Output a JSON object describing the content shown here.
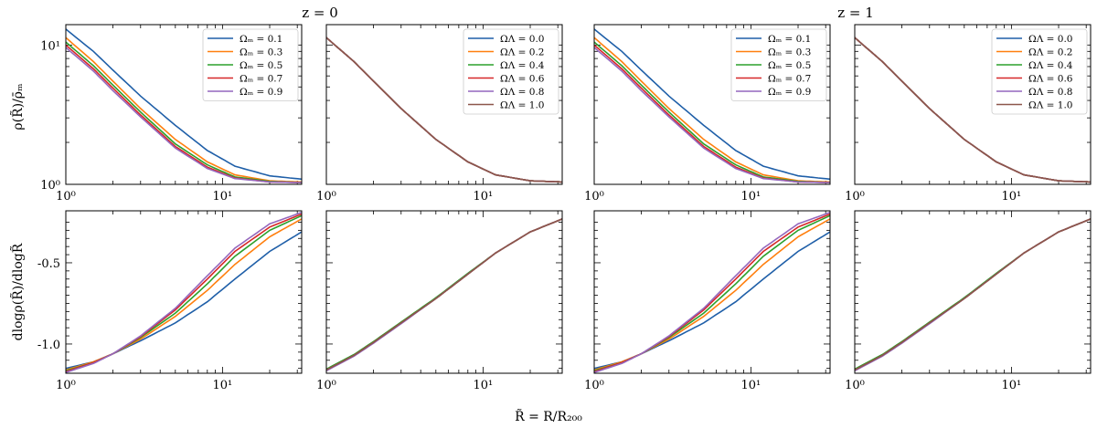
{
  "figure": {
    "group_titles": [
      "z = 0",
      "z = 1"
    ],
    "xlabel": "R̃  = R/R₂₀₀",
    "ylabel_top": "ρ(R̃)/ρ̄ₘ",
    "ylabel_bottom": "dlogρ(R̃)/dlogR̃"
  },
  "chart_data": [
    {
      "type": "line",
      "row": "top",
      "col": 0,
      "x": [
        1,
        1.5,
        2,
        3,
        5,
        8,
        12,
        20,
        32
      ],
      "xscale": "log",
      "yscale": "log",
      "xlim": [
        1,
        32
      ],
      "ylim": [
        1,
        14
      ],
      "xticks": [
        "10⁰",
        "10¹"
      ],
      "yticks": [
        "10⁰",
        "10¹"
      ],
      "legend": "top-right",
      "series": [
        {
          "name": "Ωₘ = 0.1",
          "color": "#1f5fa8",
          "values": [
            13.0,
            9.0,
            6.6,
            4.3,
            2.65,
            1.75,
            1.35,
            1.15,
            1.09
          ]
        },
        {
          "name": "Ωₘ = 0.3",
          "color": "#ff7f0e",
          "values": [
            11.3,
            7.6,
            5.5,
            3.5,
            2.1,
            1.45,
            1.17,
            1.06,
            1.04
          ]
        },
        {
          "name": "Ωₘ = 0.5",
          "color": "#2ca02c",
          "values": [
            10.5,
            7.1,
            5.15,
            3.3,
            1.95,
            1.38,
            1.13,
            1.05,
            1.03
          ]
        },
        {
          "name": "Ωₘ = 0.7",
          "color": "#d62728",
          "values": [
            10.0,
            6.75,
            4.9,
            3.15,
            1.87,
            1.33,
            1.11,
            1.04,
            1.03
          ]
        },
        {
          "name": "Ωₘ = 0.9",
          "color": "#9467bd",
          "values": [
            9.6,
            6.5,
            4.7,
            3.05,
            1.82,
            1.3,
            1.1,
            1.04,
            1.03
          ]
        }
      ]
    },
    {
      "type": "line",
      "row": "top",
      "col": 1,
      "x": [
        1,
        1.5,
        2,
        3,
        5,
        8,
        12,
        20,
        32
      ],
      "xscale": "log",
      "yscale": "log",
      "xlim": [
        1,
        32
      ],
      "ylim": [
        1,
        14
      ],
      "xticks": [
        "10⁰",
        "10¹"
      ],
      "yticks": [],
      "legend": "top-right",
      "series": [
        {
          "name": "ΩΛ = 0.0",
          "color": "#1f5fa8",
          "values": [
            11.3,
            7.6,
            5.5,
            3.5,
            2.1,
            1.45,
            1.17,
            1.06,
            1.04
          ]
        },
        {
          "name": "ΩΛ = 0.2",
          "color": "#ff7f0e",
          "values": [
            11.3,
            7.6,
            5.5,
            3.5,
            2.1,
            1.45,
            1.17,
            1.06,
            1.04
          ]
        },
        {
          "name": "ΩΛ = 0.4",
          "color": "#2ca02c",
          "values": [
            11.3,
            7.6,
            5.5,
            3.5,
            2.1,
            1.45,
            1.17,
            1.06,
            1.04
          ]
        },
        {
          "name": "ΩΛ = 0.6",
          "color": "#d62728",
          "values": [
            11.3,
            7.6,
            5.5,
            3.5,
            2.1,
            1.45,
            1.17,
            1.06,
            1.04
          ]
        },
        {
          "name": "ΩΛ = 0.8",
          "color": "#9467bd",
          "values": [
            11.3,
            7.6,
            5.5,
            3.5,
            2.1,
            1.45,
            1.17,
            1.06,
            1.04
          ]
        },
        {
          "name": "ΩΛ = 1.0",
          "color": "#8c564b",
          "values": [
            11.3,
            7.6,
            5.5,
            3.5,
            2.1,
            1.45,
            1.17,
            1.06,
            1.04
          ]
        }
      ]
    },
    {
      "type": "line",
      "row": "top",
      "col": 2,
      "x": [
        1,
        1.5,
        2,
        3,
        5,
        8,
        12,
        20,
        32
      ],
      "xscale": "log",
      "yscale": "log",
      "xlim": [
        1,
        32
      ],
      "ylim": [
        1,
        14
      ],
      "xticks": [
        "10⁰",
        "10¹"
      ],
      "yticks": [],
      "legend": "top-right",
      "series": [
        {
          "name": "Ωₘ = 0.1",
          "color": "#1f5fa8",
          "values": [
            13.0,
            9.0,
            6.6,
            4.3,
            2.65,
            1.75,
            1.35,
            1.15,
            1.09
          ]
        },
        {
          "name": "Ωₘ = 0.3",
          "color": "#ff7f0e",
          "values": [
            11.3,
            7.6,
            5.5,
            3.5,
            2.1,
            1.45,
            1.17,
            1.06,
            1.04
          ]
        },
        {
          "name": "Ωₘ = 0.5",
          "color": "#2ca02c",
          "values": [
            10.5,
            7.1,
            5.15,
            3.3,
            1.95,
            1.38,
            1.13,
            1.05,
            1.03
          ]
        },
        {
          "name": "Ωₘ = 0.7",
          "color": "#d62728",
          "values": [
            10.0,
            6.75,
            4.9,
            3.15,
            1.87,
            1.33,
            1.11,
            1.04,
            1.03
          ]
        },
        {
          "name": "Ωₘ = 0.9",
          "color": "#9467bd",
          "values": [
            9.6,
            6.5,
            4.7,
            3.05,
            1.82,
            1.3,
            1.1,
            1.04,
            1.03
          ]
        }
      ]
    },
    {
      "type": "line",
      "row": "top",
      "col": 3,
      "x": [
        1,
        1.5,
        2,
        3,
        5,
        8,
        12,
        20,
        32
      ],
      "xscale": "log",
      "yscale": "log",
      "xlim": [
        1,
        32
      ],
      "ylim": [
        1,
        14
      ],
      "xticks": [
        "10⁰",
        "10¹"
      ],
      "yticks": [],
      "legend": "top-right",
      "series": [
        {
          "name": "ΩΛ = 0.0",
          "color": "#1f5fa8",
          "values": [
            11.3,
            7.6,
            5.5,
            3.5,
            2.1,
            1.45,
            1.17,
            1.06,
            1.04
          ]
        },
        {
          "name": "ΩΛ = 0.2",
          "color": "#ff7f0e",
          "values": [
            11.3,
            7.6,
            5.5,
            3.5,
            2.1,
            1.45,
            1.17,
            1.06,
            1.04
          ]
        },
        {
          "name": "ΩΛ = 0.4",
          "color": "#2ca02c",
          "values": [
            11.3,
            7.6,
            5.5,
            3.5,
            2.1,
            1.45,
            1.17,
            1.06,
            1.04
          ]
        },
        {
          "name": "ΩΛ = 0.6",
          "color": "#d62728",
          "values": [
            11.3,
            7.6,
            5.5,
            3.5,
            2.1,
            1.45,
            1.17,
            1.06,
            1.04
          ]
        },
        {
          "name": "ΩΛ = 0.8",
          "color": "#9467bd",
          "values": [
            11.3,
            7.6,
            5.5,
            3.5,
            2.1,
            1.45,
            1.17,
            1.06,
            1.04
          ]
        },
        {
          "name": "ΩΛ = 1.0",
          "color": "#8c564b",
          "values": [
            11.3,
            7.6,
            5.5,
            3.5,
            2.1,
            1.45,
            1.17,
            1.06,
            1.04
          ]
        }
      ]
    },
    {
      "type": "line",
      "row": "bottom",
      "col": 0,
      "x": [
        1,
        1.5,
        2,
        3,
        5,
        8,
        12,
        20,
        32
      ],
      "xscale": "log",
      "yscale": "linear",
      "xlim": [
        1,
        32
      ],
      "ylim": [
        -1.18,
        -0.18
      ],
      "xticks": [
        "10⁰",
        "10¹"
      ],
      "yticks": [
        "-1.0",
        "-0.5"
      ],
      "ytick_values": [
        -1.0,
        -0.5
      ],
      "series": [
        {
          "name": "Ωₘ = 0.1",
          "color": "#1f5fa8",
          "values": [
            -1.15,
            -1.11,
            -1.06,
            -0.98,
            -0.87,
            -0.74,
            -0.6,
            -0.43,
            -0.31
          ]
        },
        {
          "name": "Ωₘ = 0.3",
          "color": "#ff7f0e",
          "values": [
            -1.16,
            -1.11,
            -1.06,
            -0.97,
            -0.83,
            -0.67,
            -0.51,
            -0.34,
            -0.23
          ]
        },
        {
          "name": "Ωₘ = 0.5",
          "color": "#2ca02c",
          "values": [
            -1.165,
            -1.115,
            -1.06,
            -0.96,
            -0.81,
            -0.63,
            -0.46,
            -0.3,
            -0.21
          ]
        },
        {
          "name": "Ωₘ = 0.7",
          "color": "#d62728",
          "values": [
            -1.17,
            -1.115,
            -1.06,
            -0.955,
            -0.79,
            -0.6,
            -0.43,
            -0.28,
            -0.2
          ]
        },
        {
          "name": "Ωₘ = 0.9",
          "color": "#9467bd",
          "values": [
            -1.175,
            -1.12,
            -1.06,
            -0.95,
            -0.78,
            -0.58,
            -0.41,
            -0.26,
            -0.19
          ]
        }
      ]
    },
    {
      "type": "line",
      "row": "bottom",
      "col": 1,
      "x": [
        1,
        1.5,
        2,
        3,
        5,
        8,
        12,
        20,
        32
      ],
      "xscale": "log",
      "yscale": "linear",
      "xlim": [
        1,
        32
      ],
      "ylim": [
        -1.18,
        -0.18
      ],
      "xticks": [
        "10⁰",
        "10¹"
      ],
      "yticks": [],
      "series": [
        {
          "name": "ΩΛ = 0.0",
          "color": "#1f5fa8",
          "values": [
            -1.16,
            -1.07,
            -0.99,
            -0.87,
            -0.72,
            -0.57,
            -0.44,
            -0.31,
            -0.23
          ]
        },
        {
          "name": "ΩΛ = 0.2",
          "color": "#ff7f0e",
          "values": [
            -1.16,
            -1.07,
            -0.99,
            -0.87,
            -0.72,
            -0.57,
            -0.44,
            -0.31,
            -0.23
          ]
        },
        {
          "name": "ΩΛ = 0.4",
          "color": "#2ca02c",
          "values": [
            -1.155,
            -1.065,
            -0.985,
            -0.865,
            -0.715,
            -0.565,
            -0.44,
            -0.31,
            -0.23
          ]
        },
        {
          "name": "ΩΛ = 0.6",
          "color": "#d62728",
          "values": [
            -1.16,
            -1.07,
            -0.99,
            -0.87,
            -0.72,
            -0.57,
            -0.44,
            -0.31,
            -0.23
          ]
        },
        {
          "name": "ΩΛ = 0.8",
          "color": "#9467bd",
          "values": [
            -1.165,
            -1.075,
            -0.995,
            -0.875,
            -0.72,
            -0.57,
            -0.44,
            -0.31,
            -0.23
          ]
        },
        {
          "name": "ΩΛ = 1.0",
          "color": "#8c564b",
          "values": [
            -1.16,
            -1.07,
            -0.99,
            -0.87,
            -0.72,
            -0.57,
            -0.44,
            -0.31,
            -0.23
          ]
        }
      ]
    },
    {
      "type": "line",
      "row": "bottom",
      "col": 2,
      "x": [
        1,
        1.5,
        2,
        3,
        5,
        8,
        12,
        20,
        32
      ],
      "xscale": "log",
      "yscale": "linear",
      "xlim": [
        1,
        32
      ],
      "ylim": [
        -1.18,
        -0.18
      ],
      "xticks": [
        "10⁰",
        "10¹"
      ],
      "yticks": [],
      "series": [
        {
          "name": "Ωₘ = 0.1",
          "color": "#1f5fa8",
          "values": [
            -1.15,
            -1.11,
            -1.06,
            -0.98,
            -0.87,
            -0.74,
            -0.6,
            -0.43,
            -0.31
          ]
        },
        {
          "name": "Ωₘ = 0.3",
          "color": "#ff7f0e",
          "values": [
            -1.16,
            -1.11,
            -1.06,
            -0.97,
            -0.83,
            -0.67,
            -0.51,
            -0.34,
            -0.23
          ]
        },
        {
          "name": "Ωₘ = 0.5",
          "color": "#2ca02c",
          "values": [
            -1.165,
            -1.115,
            -1.06,
            -0.96,
            -0.81,
            -0.63,
            -0.46,
            -0.3,
            -0.21
          ]
        },
        {
          "name": "Ωₘ = 0.7",
          "color": "#d62728",
          "values": [
            -1.17,
            -1.115,
            -1.06,
            -0.955,
            -0.79,
            -0.6,
            -0.43,
            -0.28,
            -0.2
          ]
        },
        {
          "name": "Ωₘ = 0.9",
          "color": "#9467bd",
          "values": [
            -1.175,
            -1.12,
            -1.06,
            -0.95,
            -0.78,
            -0.58,
            -0.41,
            -0.26,
            -0.19
          ]
        }
      ]
    },
    {
      "type": "line",
      "row": "bottom",
      "col": 3,
      "x": [
        1,
        1.5,
        2,
        3,
        5,
        8,
        12,
        20,
        32
      ],
      "xscale": "log",
      "yscale": "linear",
      "xlim": [
        1,
        32
      ],
      "ylim": [
        -1.18,
        -0.18
      ],
      "xticks": [
        "10⁰",
        "10¹"
      ],
      "yticks": [],
      "series": [
        {
          "name": "ΩΛ = 0.0",
          "color": "#1f5fa8",
          "values": [
            -1.16,
            -1.07,
            -0.99,
            -0.87,
            -0.72,
            -0.57,
            -0.44,
            -0.31,
            -0.23
          ]
        },
        {
          "name": "ΩΛ = 0.2",
          "color": "#ff7f0e",
          "values": [
            -1.16,
            -1.07,
            -0.99,
            -0.87,
            -0.72,
            -0.57,
            -0.44,
            -0.31,
            -0.23
          ]
        },
        {
          "name": "ΩΛ = 0.4",
          "color": "#2ca02c",
          "values": [
            -1.155,
            -1.065,
            -0.985,
            -0.865,
            -0.715,
            -0.565,
            -0.44,
            -0.31,
            -0.23
          ]
        },
        {
          "name": "ΩΛ = 0.6",
          "color": "#d62728",
          "values": [
            -1.16,
            -1.07,
            -0.99,
            -0.87,
            -0.72,
            -0.57,
            -0.44,
            -0.31,
            -0.23
          ]
        },
        {
          "name": "ΩΛ = 0.8",
          "color": "#9467bd",
          "values": [
            -1.165,
            -1.075,
            -0.995,
            -0.875,
            -0.72,
            -0.57,
            -0.44,
            -0.31,
            -0.23
          ]
        },
        {
          "name": "ΩΛ = 1.0",
          "color": "#8c564b",
          "values": [
            -1.16,
            -1.07,
            -0.99,
            -0.87,
            -0.72,
            -0.57,
            -0.44,
            -0.31,
            -0.23
          ]
        }
      ]
    }
  ]
}
